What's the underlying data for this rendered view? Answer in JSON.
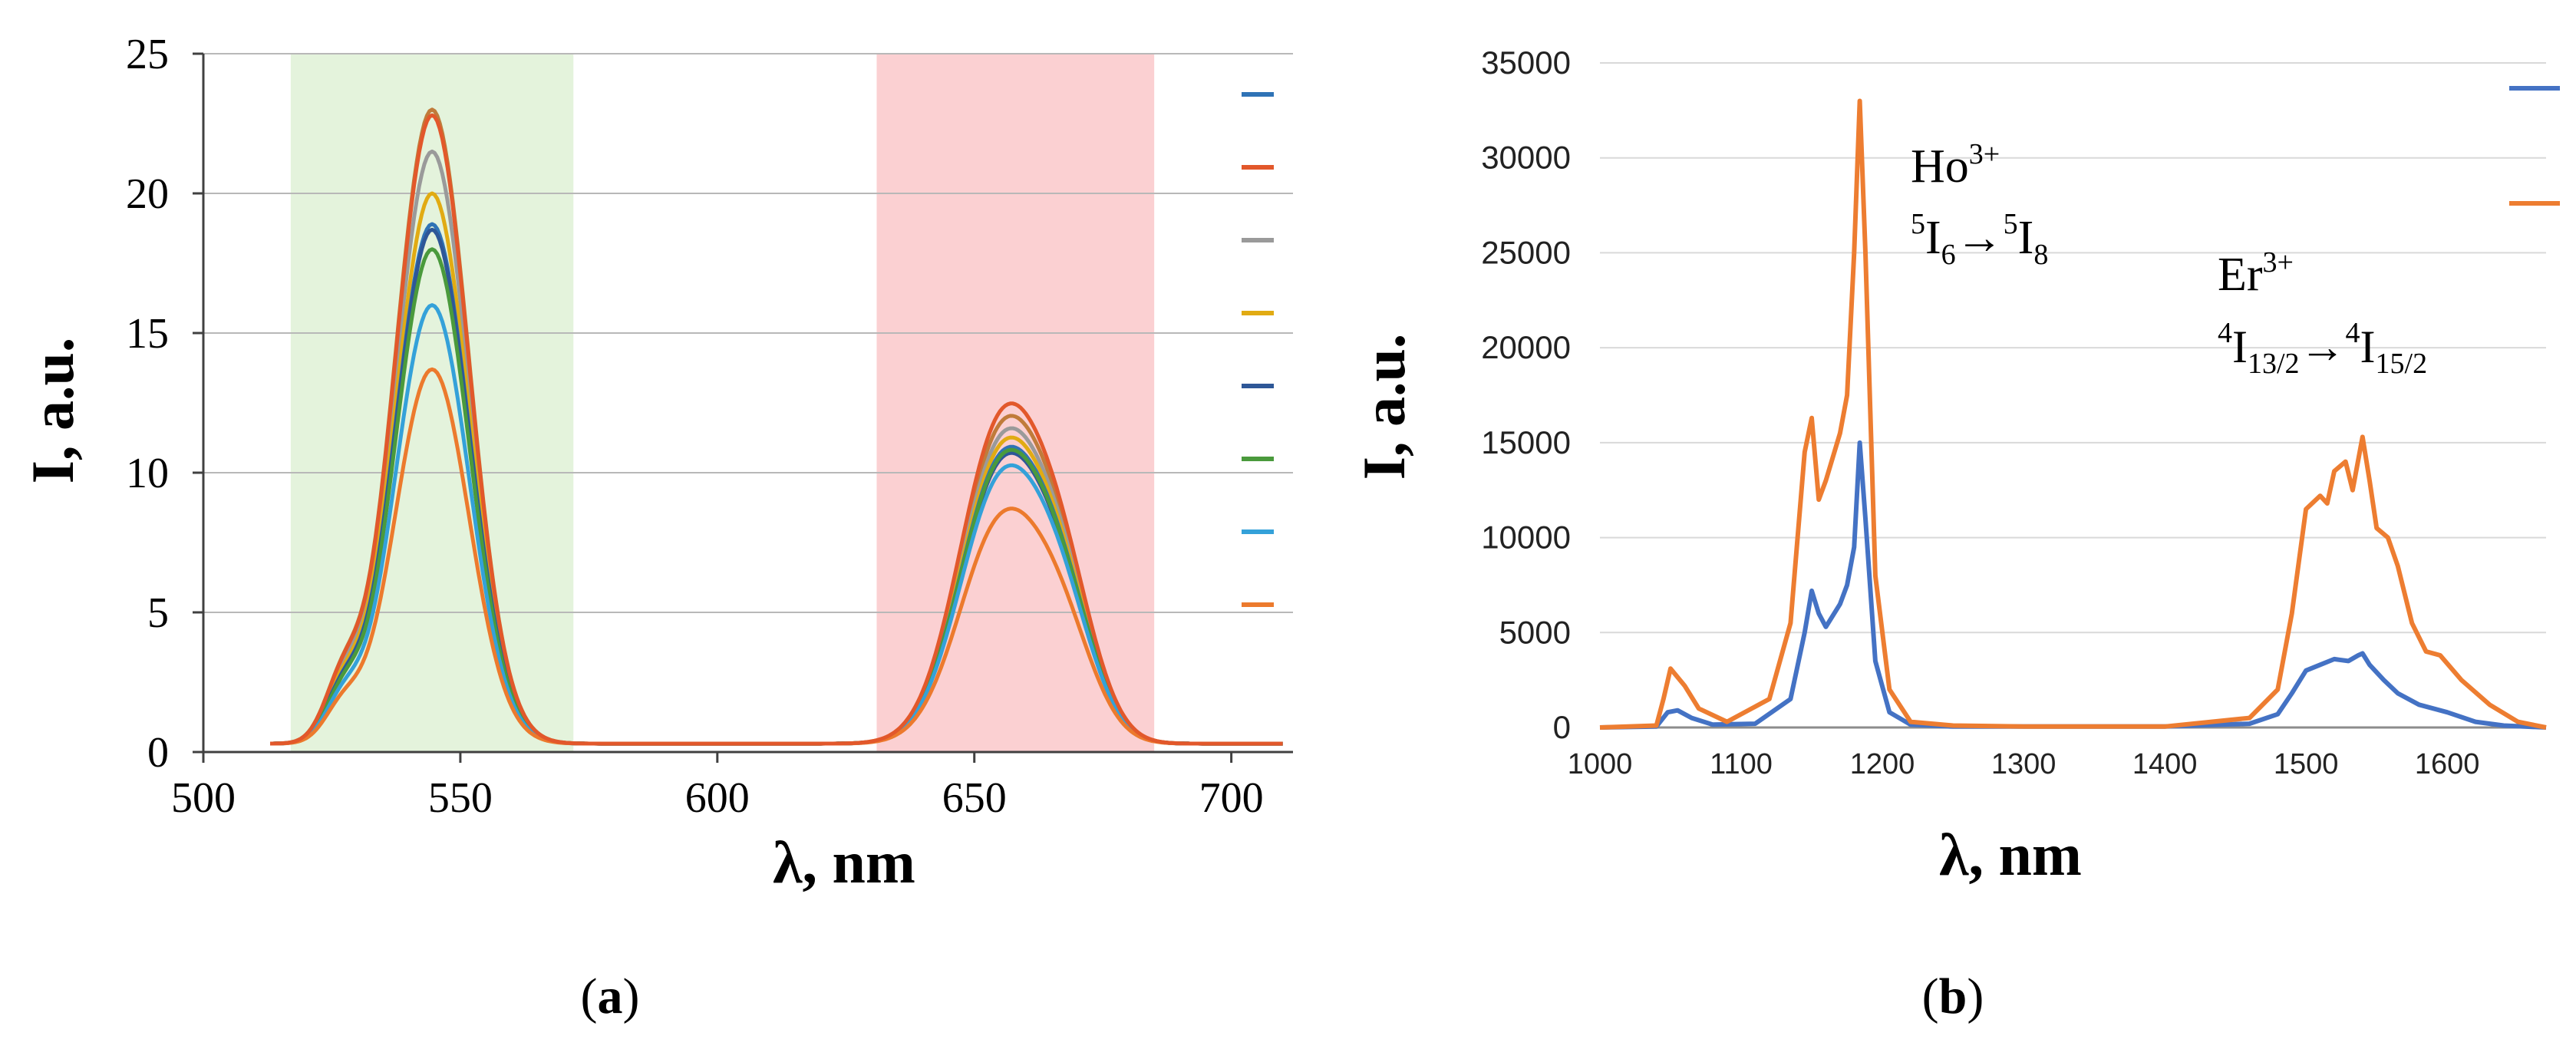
{
  "panels": {
    "a": {
      "label": "(a)",
      "letter": "a"
    },
    "b": {
      "label": "(b)",
      "letter": "b"
    }
  },
  "chart_data": [
    {
      "id": "a",
      "type": "line",
      "xlabel": "λ, nm",
      "ylabel": "I, a.u.",
      "xlim": [
        500,
        712
      ],
      "ylim": [
        0,
        25
      ],
      "xticks": [
        "500",
        "550",
        "600",
        "650",
        "700"
      ],
      "yticks": [
        "0",
        "5",
        "10",
        "15",
        "20",
        "25"
      ],
      "grid": "horizontal",
      "legend": "right",
      "legend_entries": 8,
      "shaded_bands": [
        {
          "from": 517,
          "to": 572,
          "color": "#e4f3dc"
        },
        {
          "from": 631,
          "to": 685,
          "color": "#fbd0d2"
        }
      ],
      "series": [
        {
          "color": "#c07b3a",
          "green_peak": 22.7,
          "red_peak": 10.6
        },
        {
          "color": "#9a9a9a",
          "green_peak": 21.2,
          "red_peak": 10.2
        },
        {
          "color": "#e1ab13",
          "green_peak": 19.7,
          "red_peak": 9.9
        },
        {
          "color": "#2f73b6",
          "green_peak": 18.6,
          "red_peak": 9.6
        },
        {
          "color": "#2e5797",
          "green_peak": 18.4,
          "red_peak": 9.4
        },
        {
          "color": "#4a9a3c",
          "green_peak": 17.7,
          "red_peak": 9.5
        },
        {
          "color": "#34a1d9",
          "green_peak": 15.7,
          "red_peak": 9.0
        },
        {
          "color": "#ec7a2d",
          "green_peak": 13.4,
          "red_peak": 7.6
        },
        {
          "color": "#e2582b",
          "green_peak": 22.5,
          "red_peak": 11.0
        }
      ],
      "legend_colors": [
        "#2f73b6",
        "#e2582b",
        "#9a9a9a",
        "#e1ab13",
        "#2e5797",
        "#4a9a3c",
        "#34a1d9",
        "#ec7a2d"
      ]
    },
    {
      "id": "b",
      "type": "line",
      "xlabel": "λ, nm",
      "ylabel": "I, a.u.",
      "xlim": [
        1000,
        1670
      ],
      "ylim": [
        0,
        35000
      ],
      "xticks": [
        "1000",
        "1100",
        "1200",
        "1300",
        "1400",
        "1500",
        "1600"
      ],
      "yticks": [
        "0",
        "5000",
        "10000",
        "15000",
        "20000",
        "25000",
        "30000",
        "35000"
      ],
      "grid": "horizontal",
      "legend": "top-right",
      "annotations": [
        {
          "ion": "Ho",
          "ion_sup": "3+",
          "transition": [
            "5",
            "I",
            "6",
            "→",
            "5",
            "I",
            "8"
          ]
        },
        {
          "ion": "Er",
          "ion_sup": "3+",
          "transition": [
            "4",
            "I",
            "13/2",
            "→",
            "4",
            "I",
            "15/2"
          ]
        }
      ],
      "series": [
        {
          "color": "#4472c4",
          "x": [
            1000,
            1040,
            1048,
            1055,
            1065,
            1080,
            1110,
            1135,
            1145,
            1150,
            1155,
            1160,
            1170,
            1175,
            1180,
            1184,
            1188,
            1195,
            1205,
            1220,
            1250,
            1300,
            1400,
            1460,
            1480,
            1490,
            1500,
            1510,
            1520,
            1530,
            1537,
            1540,
            1545,
            1555,
            1565,
            1580,
            1600,
            1620,
            1640,
            1670
          ],
          "y": [
            0,
            50,
            800,
            900,
            500,
            150,
            200,
            1500,
            5000,
            7200,
            6000,
            5300,
            6500,
            7500,
            9500,
            15000,
            11000,
            3500,
            800,
            150,
            50,
            50,
            50,
            200,
            700,
            1800,
            3000,
            3300,
            3600,
            3500,
            3800,
            3900,
            3300,
            2500,
            1800,
            1200,
            800,
            300,
            100,
            0
          ]
        },
        {
          "color": "#ed7d31",
          "x": [
            1000,
            1040,
            1045,
            1050,
            1060,
            1070,
            1090,
            1120,
            1135,
            1145,
            1150,
            1155,
            1160,
            1170,
            1175,
            1180,
            1184,
            1188,
            1195,
            1205,
            1220,
            1250,
            1300,
            1400,
            1460,
            1480,
            1490,
            1500,
            1510,
            1515,
            1520,
            1528,
            1533,
            1540,
            1545,
            1550,
            1558,
            1565,
            1575,
            1585,
            1595,
            1610,
            1630,
            1650,
            1670
          ],
          "y": [
            0,
            100,
            1500,
            3100,
            2200,
            1000,
            300,
            1500,
            5500,
            14500,
            16300,
            12000,
            13000,
            15500,
            17500,
            25000,
            33000,
            25000,
            8000,
            2000,
            300,
            100,
            50,
            50,
            500,
            2000,
            6000,
            11500,
            12200,
            11800,
            13500,
            14000,
            12500,
            15300,
            13000,
            10500,
            10000,
            8500,
            5500,
            4000,
            3800,
            2500,
            1200,
            300,
            0
          ]
        }
      ],
      "legend_colors": [
        "#4472c4",
        "#ed7d31"
      ]
    }
  ]
}
